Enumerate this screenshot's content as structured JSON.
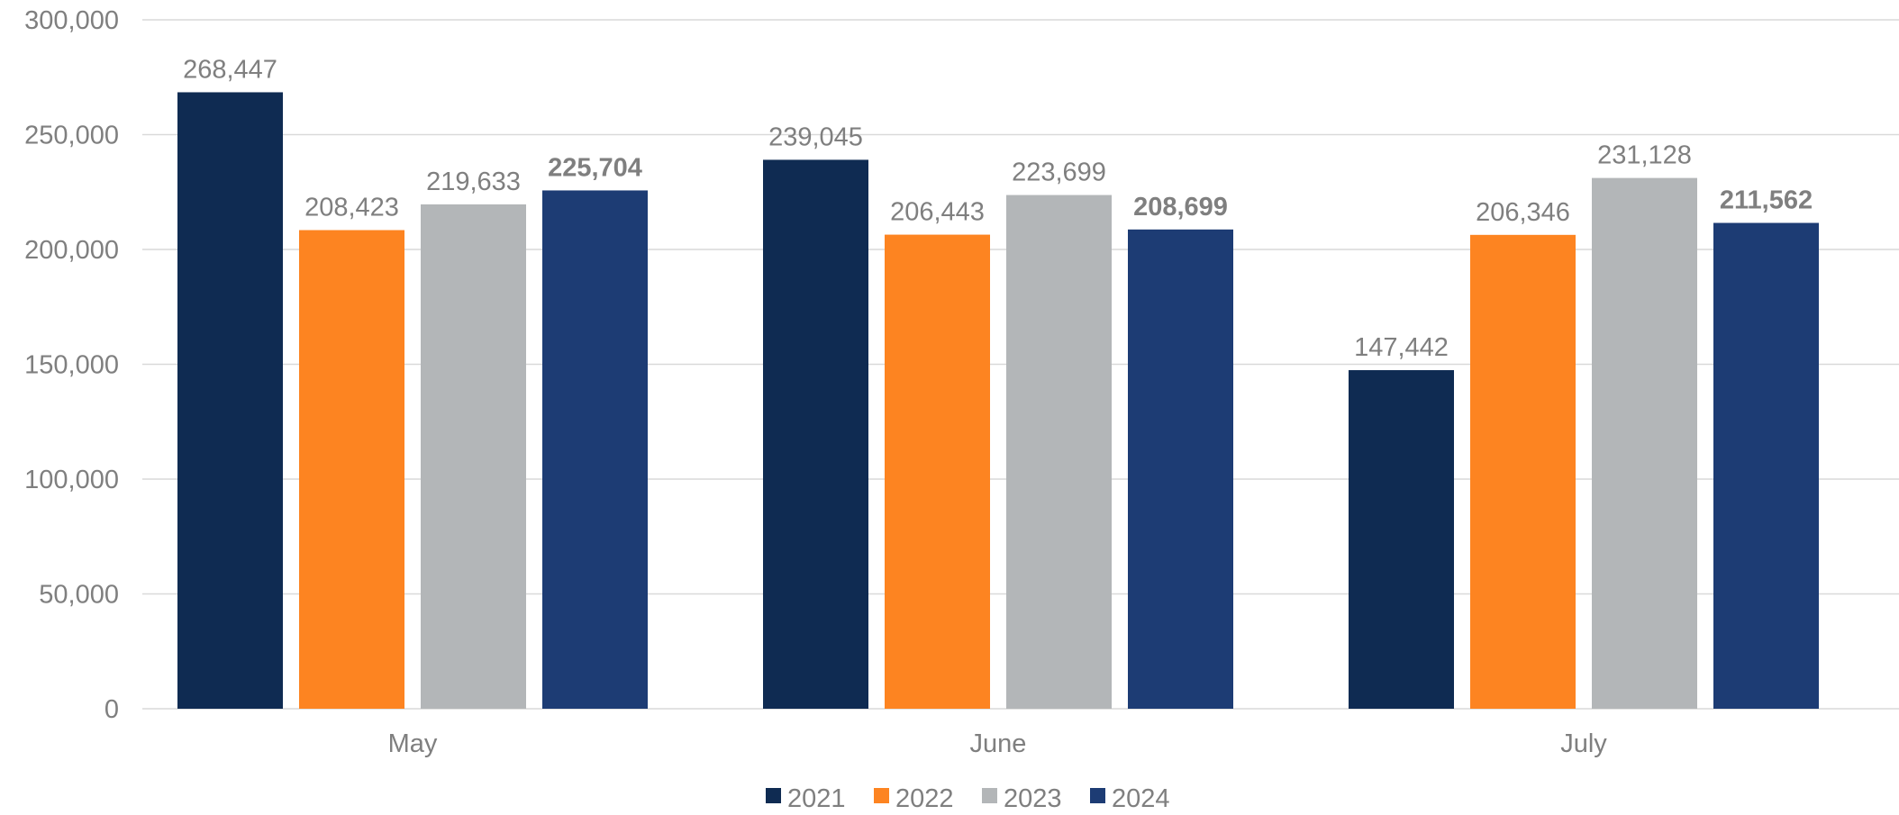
{
  "chart_data": {
    "type": "bar",
    "title": "",
    "xlabel": "",
    "ylabel": "",
    "categories": [
      "May",
      "June",
      "July"
    ],
    "series": [
      {
        "name": "2021",
        "values": [
          268447,
          239045,
          147442
        ],
        "color": "#0f2b52",
        "bold_labels": false
      },
      {
        "name": "2022",
        "values": [
          208423,
          206443,
          206346
        ],
        "color": "#fd8421",
        "bold_labels": false
      },
      {
        "name": "2023",
        "values": [
          219633,
          223699,
          231128
        ],
        "color": "#b3b6b8",
        "bold_labels": false
      },
      {
        "name": "2024",
        "values": [
          225704,
          208699,
          211562
        ],
        "color": "#1d3c74",
        "bold_labels": true
      }
    ],
    "ylim": [
      0,
      300000
    ],
    "yticks": [
      0,
      50000,
      100000,
      150000,
      200000,
      250000,
      300000
    ],
    "ytick_labels": [
      "0",
      "50,000",
      "100,000",
      "150,000",
      "200,000",
      "250,000",
      "300,000"
    ],
    "grid": true,
    "legend_position": "bottom",
    "colors": {
      "text": "#7f7f7f",
      "grid": "#d9d9d9"
    }
  }
}
